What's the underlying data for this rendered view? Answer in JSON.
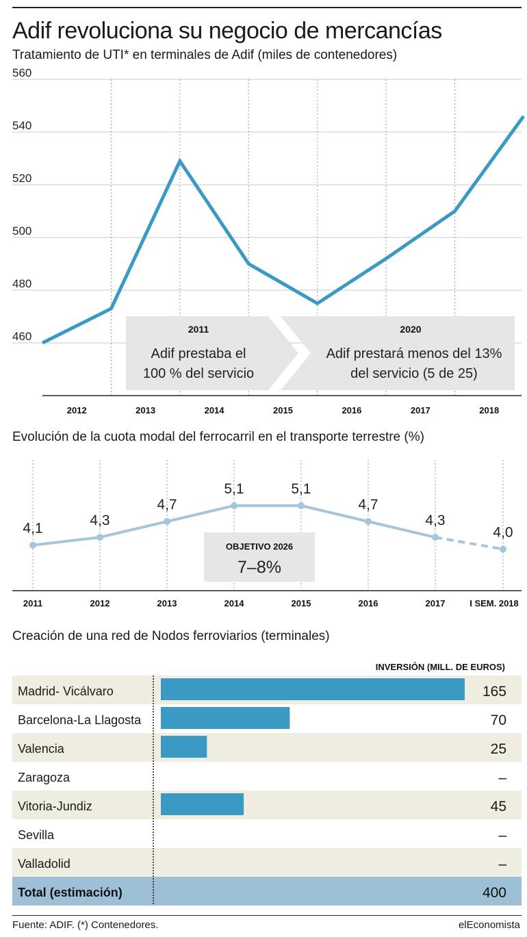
{
  "header": {
    "title": "Adif revoluciona su negocio de mercancías",
    "subtitle": "Tratamiento de UTI* en terminales de Adif (miles de contenedores)"
  },
  "chart_data": [
    {
      "type": "line",
      "categories": [
        "2012",
        "2013",
        "2014",
        "2015",
        "2016",
        "2017",
        "2018"
      ],
      "x": [
        2011.5,
        2012.5,
        2013.5,
        2014.5,
        2015.5,
        2016.5,
        2017.5,
        2018.5
      ],
      "values": [
        460,
        473,
        529,
        490,
        475,
        492,
        510,
        546
      ],
      "ylim": [
        440,
        560
      ],
      "yticks": [
        "460",
        "480",
        "500",
        "520",
        "540",
        "560"
      ],
      "color": "#3a9ac4",
      "grid": "vertical-dotted",
      "annotations": [
        {
          "year": "2011",
          "text_line1": "Adif prestaba el",
          "text_line2": "100 % del servicio"
        },
        {
          "year": "2020",
          "text_line1": "Adif prestará menos del 13%",
          "text_line2": "del servicio (5 de 25)"
        }
      ]
    },
    {
      "type": "line",
      "title": "Evolución de la cuota modal del ferrocarril en el transporte terrestre (%)",
      "categories": [
        "2011",
        "2012",
        "2013",
        "2014",
        "2015",
        "2016",
        "2017",
        "I SEM. 2018"
      ],
      "values": [
        4.1,
        4.3,
        4.7,
        5.1,
        5.1,
        4.7,
        4.3,
        4.0
      ],
      "value_labels": [
        "4,1",
        "4,3",
        "4,7",
        "5,1",
        "5,1",
        "4,7",
        "4,3",
        "4,0"
      ],
      "dashed_last_segment": true,
      "color": "#a3c6dc",
      "target": {
        "label": "OBJETIVO 2026",
        "value": "7–8%"
      }
    },
    {
      "type": "bar",
      "title": "Creación de una red de Nodos ferroviarios (terminales)",
      "value_header": "INVERSIÓN (MILL. DE EUROS)",
      "categories": [
        "Madrid- Vicálvaro",
        "Barcelona-La Llagosta",
        "Valencia",
        "Zaragoza",
        "Vitoria-Jundiz",
        "Sevilla",
        "Valladolid"
      ],
      "values": [
        165,
        70,
        25,
        null,
        45,
        null,
        null
      ],
      "value_labels": [
        "165",
        "70",
        "25",
        "–",
        "45",
        "–",
        "–"
      ],
      "total": {
        "label": "Total (estimación)",
        "value": "400"
      },
      "bar_color": "#3a9ac4",
      "stripe_color": "#efeddf",
      "total_color": "#9dc0d6"
    }
  ],
  "footer": {
    "source": "Fuente: ADIF. (*) Contenedores.",
    "brand": "elEconomista"
  }
}
